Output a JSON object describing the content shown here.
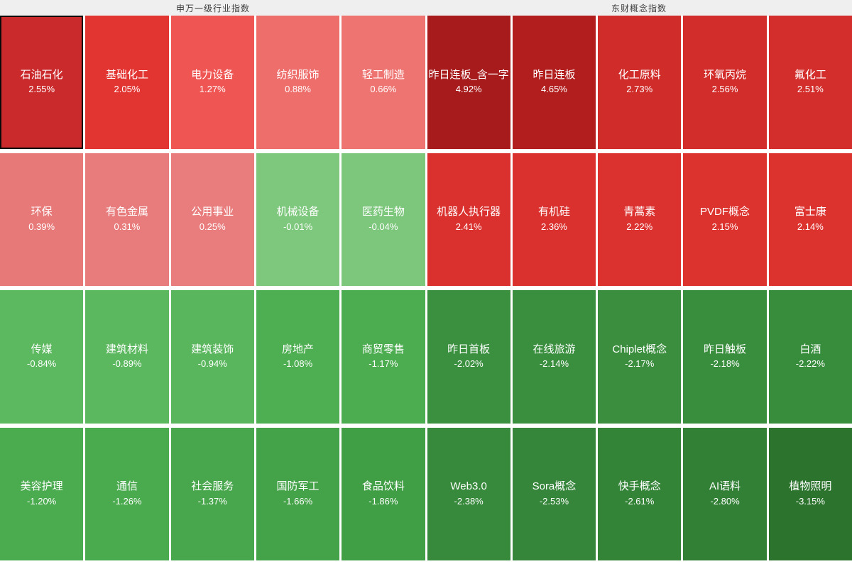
{
  "page": {
    "header_bg": "#f0efef",
    "gap_color": "#ffffff",
    "positive_color_max": "#a81b1c",
    "negative_color_max": "#2c742e"
  },
  "sections": [
    {
      "title": "申万一级行业指数",
      "tiles": [
        {
          "name": "石油石化",
          "pct": "2.55%",
          "color": "#cb2a2c",
          "selected": true
        },
        {
          "name": "基础化工",
          "pct": "2.05%",
          "color": "#e23431",
          "selected": false
        },
        {
          "name": "电力设备",
          "pct": "1.27%",
          "color": "#ef5552",
          "selected": false
        },
        {
          "name": "纺织服饰",
          "pct": "0.88%",
          "color": "#ed6e6b",
          "selected": false
        },
        {
          "name": "轻工制造",
          "pct": "0.66%",
          "color": "#ee7471",
          "selected": false
        },
        {
          "name": "环保",
          "pct": "0.39%",
          "color": "#e87979",
          "selected": false
        },
        {
          "name": "有色金属",
          "pct": "0.31%",
          "color": "#e87b7b",
          "selected": false
        },
        {
          "name": "公用事业",
          "pct": "0.25%",
          "color": "#e97c7c",
          "selected": false
        },
        {
          "name": "机械设备",
          "pct": "-0.01%",
          "color": "#7ec87e",
          "selected": false
        },
        {
          "name": "医药生物",
          "pct": "-0.04%",
          "color": "#7dc77d",
          "selected": false
        },
        {
          "name": "传媒",
          "pct": "-0.84%",
          "color": "#5cb960",
          "selected": false
        },
        {
          "name": "建筑材料",
          "pct": "-0.89%",
          "color": "#5bb85f",
          "selected": false
        },
        {
          "name": "建筑装饰",
          "pct": "-0.94%",
          "color": "#59b65d",
          "selected": false
        },
        {
          "name": "房地产",
          "pct": "-1.08%",
          "color": "#4eae52",
          "selected": false
        },
        {
          "name": "商贸零售",
          "pct": "-1.17%",
          "color": "#4cac50",
          "selected": false
        },
        {
          "name": "美容护理",
          "pct": "-1.20%",
          "color": "#4bab4f",
          "selected": false
        },
        {
          "name": "通信",
          "pct": "-1.26%",
          "color": "#4aaa4e",
          "selected": false
        },
        {
          "name": "社会服务",
          "pct": "-1.37%",
          "color": "#48a74c",
          "selected": false
        },
        {
          "name": "国防军工",
          "pct": "-1.66%",
          "color": "#44a248",
          "selected": false
        },
        {
          "name": "食品饮料",
          "pct": "-1.86%",
          "color": "#409e44",
          "selected": false
        }
      ]
    },
    {
      "title": "东财概念指数",
      "tiles": [
        {
          "name": "昨日连板_含一字",
          "pct": "4.92%",
          "color": "#a81b1c",
          "selected": false
        },
        {
          "name": "昨日连板",
          "pct": "4.65%",
          "color": "#b21e1e",
          "selected": false
        },
        {
          "name": "化工原料",
          "pct": "2.73%",
          "color": "#d02c2a",
          "selected": false
        },
        {
          "name": "环氧丙烷",
          "pct": "2.56%",
          "color": "#d22d2b",
          "selected": false
        },
        {
          "name": "氟化工",
          "pct": "2.51%",
          "color": "#d32e2b",
          "selected": false
        },
        {
          "name": "机器人执行器",
          "pct": "2.41%",
          "color": "#db312e",
          "selected": false
        },
        {
          "name": "有机硅",
          "pct": "2.36%",
          "color": "#db312e",
          "selected": false
        },
        {
          "name": "青蒿素",
          "pct": "2.22%",
          "color": "#dc322f",
          "selected": false
        },
        {
          "name": "PVDF概念",
          "pct": "2.15%",
          "color": "#dd332f",
          "selected": false
        },
        {
          "name": "富士康",
          "pct": "2.14%",
          "color": "#dd332f",
          "selected": false
        },
        {
          "name": "昨日首板",
          "pct": "-2.02%",
          "color": "#3b9040",
          "selected": false
        },
        {
          "name": "在线旅游",
          "pct": "-2.14%",
          "color": "#3a8f3f",
          "selected": false
        },
        {
          "name": "Chiplet概念",
          "pct": "-2.17%",
          "color": "#3a8e3e",
          "selected": false
        },
        {
          "name": "昨日触板",
          "pct": "-2.18%",
          "color": "#398e3e",
          "selected": false
        },
        {
          "name": "白酒",
          "pct": "-2.22%",
          "color": "#388d3d",
          "selected": false
        },
        {
          "name": "Web3.0",
          "pct": "-2.38%",
          "color": "#37893b",
          "selected": false
        },
        {
          "name": "Sora概念",
          "pct": "-2.53%",
          "color": "#35863a",
          "selected": false
        },
        {
          "name": "快手概念",
          "pct": "-2.61%",
          "color": "#348438",
          "selected": false
        },
        {
          "name": "AI语料",
          "pct": "-2.80%",
          "color": "#318035",
          "selected": false
        },
        {
          "name": "植物照明",
          "pct": "-3.15%",
          "color": "#2c742e",
          "selected": false
        }
      ]
    }
  ],
  "chart_data": [
    {
      "type": "heatmap",
      "title": "申万一级行业指数",
      "value_unit": "%",
      "categories": [
        "石油石化",
        "基础化工",
        "电力设备",
        "纺织服饰",
        "轻工制造",
        "环保",
        "有色金属",
        "公用事业",
        "机械设备",
        "医药生物",
        "传媒",
        "建筑材料",
        "建筑装饰",
        "房地产",
        "商贸零售",
        "美容护理",
        "通信",
        "社会服务",
        "国防军工",
        "食品饮料"
      ],
      "values": [
        2.55,
        2.05,
        1.27,
        0.88,
        0.66,
        0.39,
        0.31,
        0.25,
        -0.01,
        -0.04,
        -0.84,
        -0.89,
        -0.94,
        -1.08,
        -1.17,
        -1.2,
        -1.26,
        -1.37,
        -1.66,
        -1.86
      ],
      "layout": "5 columns x 4 rows, sorted descending",
      "color_scale": {
        "positive": "red (darker = larger gain)",
        "negative": "green (darker = larger loss)"
      }
    },
    {
      "type": "heatmap",
      "title": "东财概念指数",
      "value_unit": "%",
      "categories": [
        "昨日连板_含一字",
        "昨日连板",
        "化工原料",
        "环氧丙烷",
        "氟化工",
        "机器人执行器",
        "有机硅",
        "青蒿素",
        "PVDF概念",
        "富士康",
        "昨日首板",
        "在线旅游",
        "Chiplet概念",
        "昨日触板",
        "白酒",
        "Web3.0",
        "Sora概念",
        "快手概念",
        "AI语料",
        "植物照明"
      ],
      "values": [
        4.92,
        4.65,
        2.73,
        2.56,
        2.51,
        2.41,
        2.36,
        2.22,
        2.15,
        2.14,
        -2.02,
        -2.14,
        -2.17,
        -2.18,
        -2.22,
        -2.38,
        -2.53,
        -2.61,
        -2.8,
        -3.15
      ],
      "layout": "5 columns x 4 rows, sorted descending",
      "color_scale": {
        "positive": "red (darker = larger gain)",
        "negative": "green (darker = larger loss)"
      }
    }
  ]
}
